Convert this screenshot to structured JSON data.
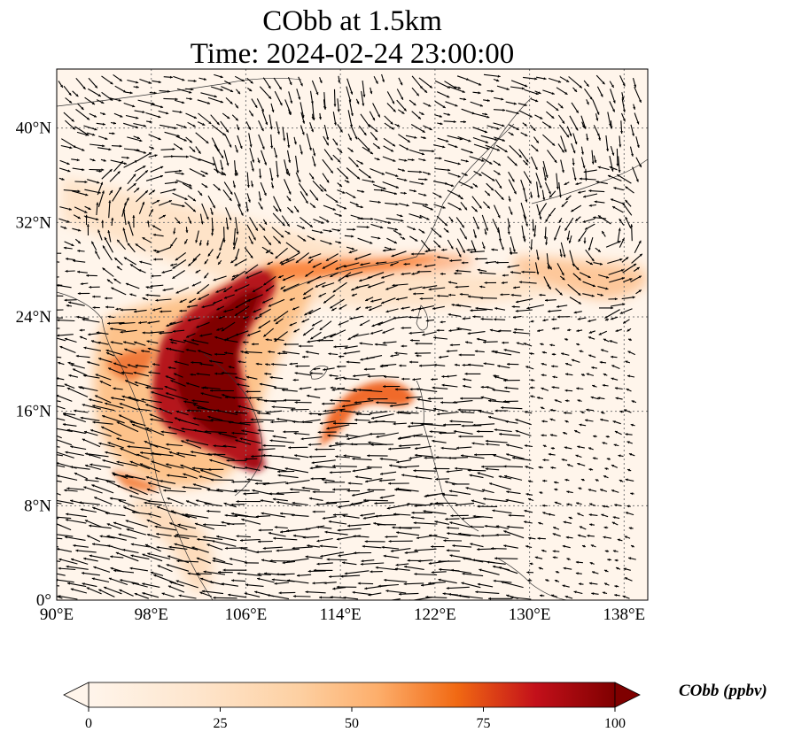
{
  "title": {
    "line1": "CObb at 1.5km",
    "line2": "Time: 2024-02-24 23:00:00"
  },
  "map": {
    "extent": {
      "lon": [
        90,
        140
      ],
      "lat": [
        0,
        45
      ]
    },
    "x_ticks": [
      {
        "value": 90,
        "label": "90°E"
      },
      {
        "value": 98,
        "label": "98°E"
      },
      {
        "value": 106,
        "label": "106°E"
      },
      {
        "value": 114,
        "label": "114°E"
      },
      {
        "value": 122,
        "label": "122°E"
      },
      {
        "value": 130,
        "label": "130°E"
      },
      {
        "value": 138,
        "label": "138°E"
      }
    ],
    "y_ticks": [
      {
        "value": 0,
        "label": "0°"
      },
      {
        "value": 8,
        "label": "8°N"
      },
      {
        "value": 16,
        "label": "16°N"
      },
      {
        "value": 24,
        "label": "24°N"
      },
      {
        "value": 32,
        "label": "32°N"
      },
      {
        "value": 40,
        "label": "40°N"
      }
    ],
    "gridlines": true,
    "background_color": "#fff5eb"
  },
  "colorbar": {
    "label": "CObb (ppbv)",
    "min": 0,
    "max": 100,
    "ticks": [
      {
        "value": 0,
        "label": "0"
      },
      {
        "value": 25,
        "label": "25"
      },
      {
        "value": 50,
        "label": "50"
      },
      {
        "value": 75,
        "label": "75"
      },
      {
        "value": 100,
        "label": "100"
      }
    ],
    "colormap": "OrRd",
    "colors": [
      "#fff5eb",
      "#fdd0a2",
      "#fd8d3c",
      "#d94801",
      "#a50f15",
      "#7f0000"
    ],
    "extend": "both"
  }
}
